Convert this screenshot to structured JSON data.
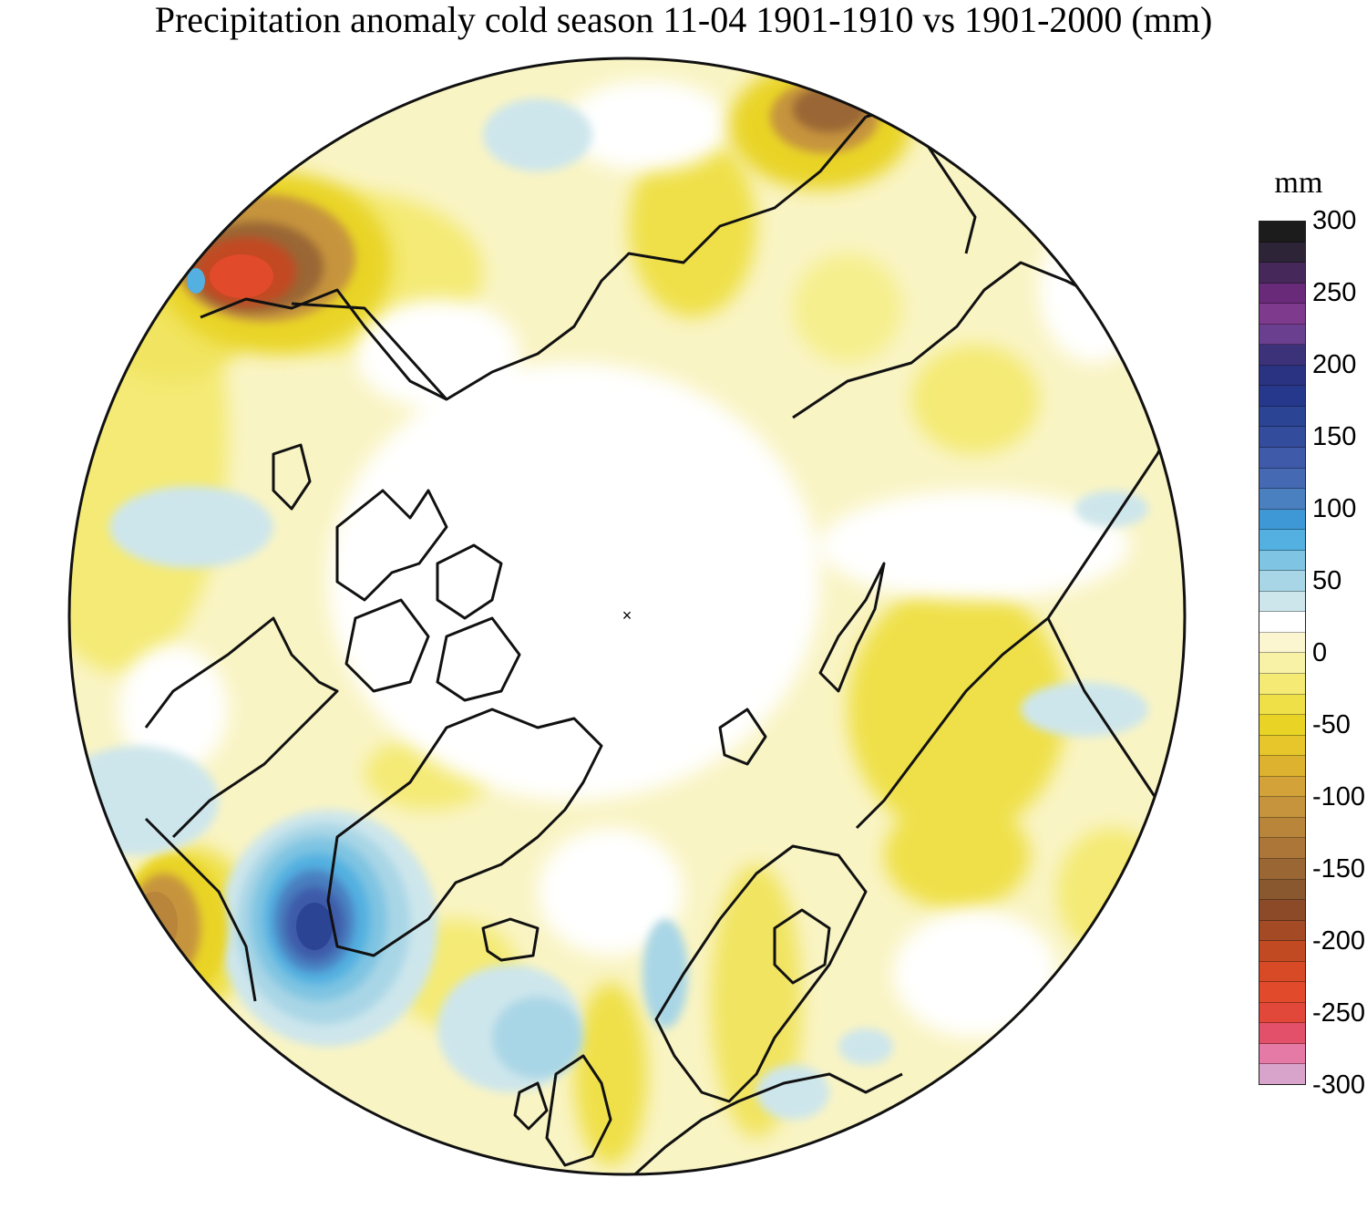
{
  "title": "Precipitation anomaly cold season 11-04 1901-1910 vs 1901-2000 (mm)",
  "legend": {
    "unit": "mm",
    "ticks": [
      {
        "label": "300",
        "value": 300
      },
      {
        "label": "250",
        "value": 250
      },
      {
        "label": "200",
        "value": 200
      },
      {
        "label": "150",
        "value": 150
      },
      {
        "label": "100",
        "value": 100
      },
      {
        "label": "50",
        "value": 50
      },
      {
        "label": "0",
        "value": 0
      },
      {
        "label": "-50",
        "value": -50
      },
      {
        "label": "-100",
        "value": -100
      },
      {
        "label": "-150",
        "value": -150
      },
      {
        "label": "-200",
        "value": -200
      },
      {
        "label": "-250",
        "value": -250
      },
      {
        "label": "-300",
        "value": -300
      }
    ],
    "colors": [
      "#1c1c1c",
      "#2e2438",
      "#47285a",
      "#6a2a7a",
      "#7e3a8c",
      "#6a3f8f",
      "#3b327a",
      "#2a3382",
      "#26388c",
      "#2b4494",
      "#344c9c",
      "#3e5aa8",
      "#4569b2",
      "#4a7fc0",
      "#3e98d6",
      "#53b0e0",
      "#7fc4e2",
      "#a9d6e6",
      "#cde6ec",
      "#ffffff",
      "#fbf6d0",
      "#f8f2a6",
      "#f4ea74",
      "#efe048",
      "#e9d426",
      "#e6c62a",
      "#ddb22e",
      "#d3a33a",
      "#c6943c",
      "#b9853a",
      "#ab7638",
      "#9a6634",
      "#8a582f",
      "#8c4a28",
      "#a44a24",
      "#c24a22",
      "#d84a26",
      "#e24a2c",
      "#e2483a",
      "#e2506a",
      "#e67aa6",
      "#d8a4cc"
    ]
  },
  "map": {
    "projection": "north-polar-stereographic",
    "center_marker": "×"
  }
}
